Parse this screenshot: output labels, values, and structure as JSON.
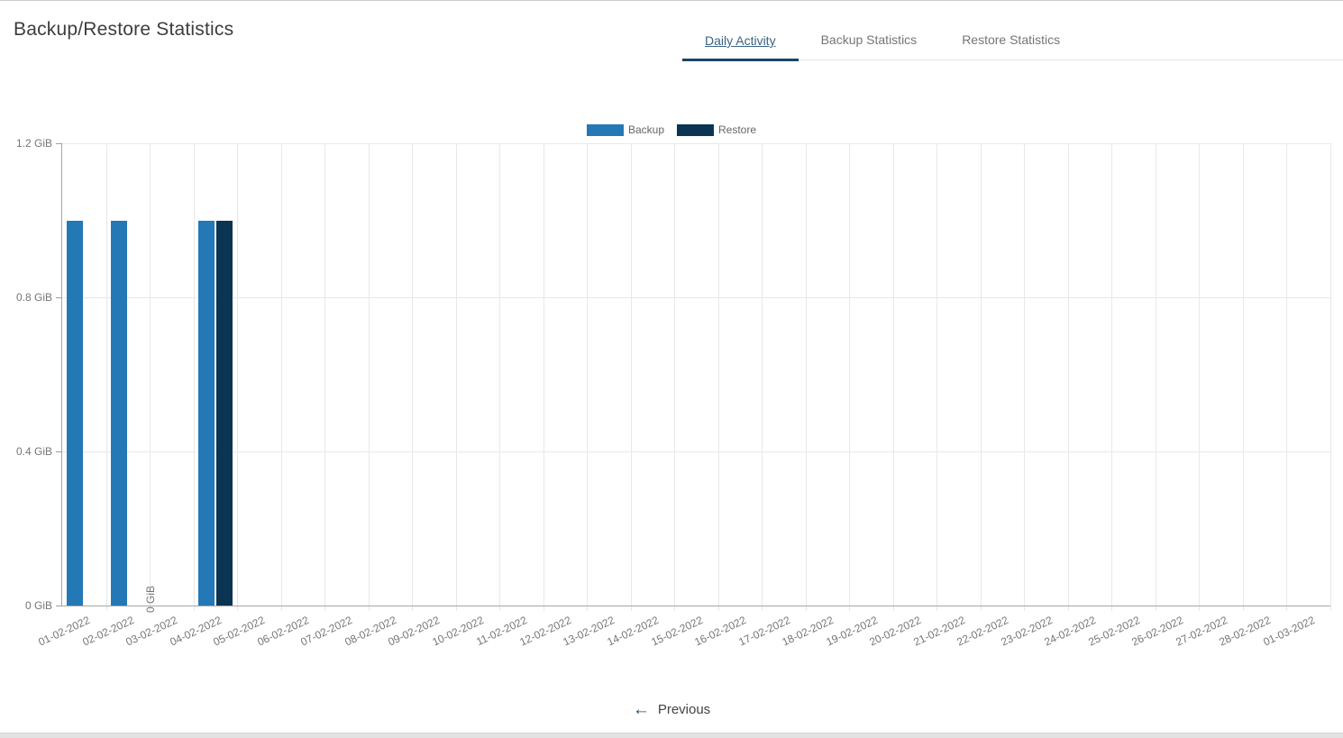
{
  "page": {
    "title": "Backup/Restore Statistics",
    "tabs": [
      {
        "label": "Daily Activity",
        "active": true
      },
      {
        "label": "Backup Statistics",
        "active": false
      },
      {
        "label": "Restore Statistics",
        "active": false
      }
    ],
    "previous_arrow": "←",
    "previous_label": "Previous"
  },
  "chart_data": {
    "type": "bar",
    "title": "",
    "xlabel": "",
    "ylabel": "",
    "unit": "GiB",
    "ylim": [
      0,
      1.2
    ],
    "grid": true,
    "legend_position": "top",
    "x_label_rotation_deg": -25,
    "categories": [
      "01-02-2022",
      "02-02-2022",
      "03-02-2022",
      "04-02-2022",
      "05-02-2022",
      "06-02-2022",
      "07-02-2022",
      "08-02-2022",
      "09-02-2022",
      "10-02-2022",
      "11-02-2022",
      "12-02-2022",
      "13-02-2022",
      "14-02-2022",
      "15-02-2022",
      "16-02-2022",
      "17-02-2022",
      "18-02-2022",
      "19-02-2022",
      "20-02-2022",
      "21-02-2022",
      "22-02-2022",
      "23-02-2022",
      "24-02-2022",
      "25-02-2022",
      "26-02-2022",
      "27-02-2022",
      "28-02-2022",
      "01-03-2022"
    ],
    "series": [
      {
        "name": "Backup",
        "color": "#2478b5",
        "values": [
          1.0,
          1.0,
          0,
          1.0,
          null,
          null,
          null,
          null,
          null,
          null,
          null,
          null,
          null,
          null,
          null,
          null,
          null,
          null,
          null,
          null,
          null,
          null,
          null,
          null,
          null,
          null,
          null,
          null,
          null
        ]
      },
      {
        "name": "Restore",
        "color": "#0a3452",
        "values": [
          null,
          null,
          null,
          1.0,
          null,
          null,
          null,
          null,
          null,
          null,
          null,
          null,
          null,
          null,
          null,
          null,
          null,
          null,
          null,
          null,
          null,
          null,
          null,
          null,
          null,
          null,
          null,
          null,
          null
        ]
      }
    ],
    "y_ticks": [
      {
        "label": "0 GiB",
        "value": 0
      },
      {
        "label": "0.4 GiB",
        "value": 0.4
      },
      {
        "label": "0.8 GiB",
        "value": 0.8
      },
      {
        "label": "1.2 GiB",
        "value": 1.2
      }
    ],
    "zero_data_label": "0 GiB"
  }
}
